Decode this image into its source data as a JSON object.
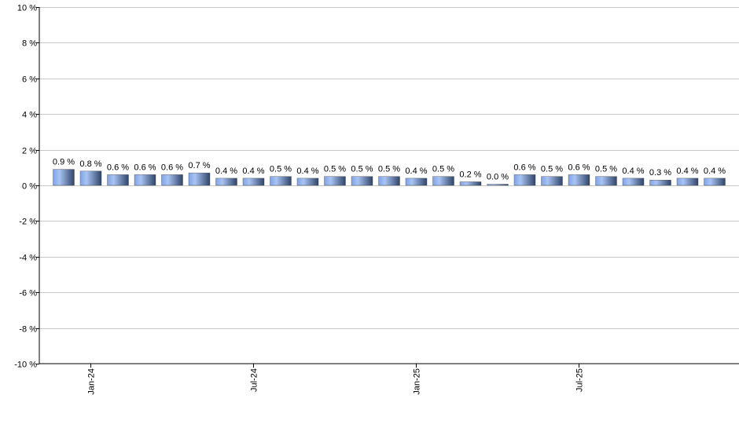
{
  "chart_data": {
    "type": "bar",
    "title": "",
    "xlabel": "",
    "ylabel": "",
    "ylim": [
      -10,
      10
    ],
    "y_ticks": [
      10,
      8,
      6,
      4,
      2,
      0,
      -2,
      -4,
      -6,
      -8,
      -10
    ],
    "y_tick_suffix": " %",
    "grid": true,
    "values": [
      0.9,
      0.8,
      0.6,
      0.6,
      0.6,
      0.7,
      0.4,
      0.4,
      0.5,
      0.4,
      0.5,
      0.5,
      0.5,
      0.4,
      0.5,
      0.2,
      0.0,
      0.6,
      0.5,
      0.6,
      0.5,
      0.4,
      0.3,
      0.4,
      0.4
    ],
    "data_labels": [
      "0.9 %",
      "0.8 %",
      "0.6 %",
      "0.6 %",
      "0.6 %",
      "0.7 %",
      "0.4 %",
      "0.4 %",
      "0.5 %",
      "0.4 %",
      "0.5 %",
      "0.5 %",
      "0.5 %",
      "0.4 %",
      "0.5 %",
      "0.2 %",
      "0.0 %",
      "0.6 %",
      "0.5 %",
      "0.6 %",
      "0.5 %",
      "0.4 %",
      "0.3 %",
      "0.4 %",
      "0.4 %"
    ],
    "x_ticks": [
      {
        "index": 1,
        "label": "Jan-24"
      },
      {
        "index": 7,
        "label": "Jul-24"
      },
      {
        "index": 13,
        "label": "Jan-25"
      },
      {
        "index": 19,
        "label": "Jul-25"
      }
    ],
    "colors": {
      "bar_light": "#9dbcf5",
      "bar_dark": "#2f4468",
      "grid": "#c8c8c8",
      "axis": "#000000"
    }
  }
}
